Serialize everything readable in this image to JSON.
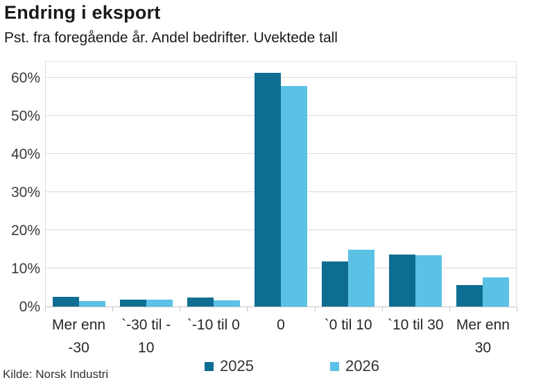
{
  "header": {
    "title": "Endring i eksport",
    "subtitle": "Pst. fra foregående år. Andel bedrifter. Uvektede tall"
  },
  "chart_data": {
    "type": "bar",
    "title": "Endring i eksport",
    "subtitle": "Pst. fra foregående år. Andel bedrifter. Uvektede tall",
    "categories": [
      "Mer enn\n-30",
      "`-30 til -\n10",
      "`-10 til 0",
      "0",
      "`0 til 10",
      "`10 til 30",
      "Mer enn\n30"
    ],
    "series": [
      {
        "name": "2025",
        "color": "#0e6e91",
        "values": [
          2.6,
          1.9,
          2.4,
          61.3,
          11.8,
          13.6,
          5.7
        ]
      },
      {
        "name": "2026",
        "color": "#5bc1e5",
        "values": [
          1.5,
          1.9,
          1.7,
          57.8,
          14.9,
          13.4,
          7.7
        ]
      }
    ],
    "xlabel": "",
    "ylabel": "",
    "ylim": [
      0,
      64.5
    ],
    "ytick_step": 10,
    "yticks": [
      "0%",
      "10%",
      "20%",
      "30%",
      "40%",
      "50%",
      "60%"
    ],
    "grid": true,
    "legend_position": "bottom",
    "gridline_color": "#d9d9d9",
    "axis_color": "#c3c3c3"
  },
  "footer": {
    "source": "Kilde: Norsk Industri"
  }
}
